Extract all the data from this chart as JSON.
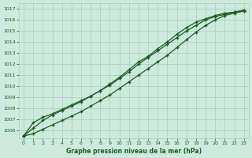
{
  "title": "Graphe pression niveau de la mer (hPa)",
  "bg_color": "#ceeade",
  "grid_color": "#aacebb",
  "line_color": "#1a5e20",
  "marker": "+",
  "xlim": [
    -0.5,
    23.5
  ],
  "ylim": [
    1005.3,
    1017.5
  ],
  "xticks": [
    0,
    1,
    2,
    3,
    4,
    5,
    6,
    7,
    8,
    9,
    10,
    11,
    12,
    13,
    14,
    15,
    16,
    17,
    18,
    19,
    20,
    21,
    22,
    23
  ],
  "yticks": [
    1006,
    1007,
    1008,
    1009,
    1010,
    1011,
    1012,
    1013,
    1014,
    1015,
    1016,
    1017
  ],
  "series": [
    [
      1005.5,
      1006.7,
      1007.2,
      1007.5,
      1007.9,
      1008.3,
      1008.7,
      1009.1,
      1009.6,
      1010.1,
      1010.7,
      1011.3,
      1012.0,
      1012.6,
      1013.2,
      1013.8,
      1014.4,
      1015.0,
      1015.5,
      1016.0,
      1016.3,
      1016.5,
      1016.7,
      1016.8
    ],
    [
      1005.5,
      1006.2,
      1006.9,
      1007.4,
      1007.8,
      1008.2,
      1008.6,
      1009.1,
      1009.6,
      1010.2,
      1010.8,
      1011.5,
      1012.2,
      1012.7,
      1013.4,
      1014.0,
      1014.7,
      1015.3,
      1015.8,
      1016.1,
      1016.4,
      1016.6,
      1016.7,
      1016.9
    ],
    [
      1005.5,
      1005.7,
      1006.1,
      1006.5,
      1006.9,
      1007.3,
      1007.7,
      1008.2,
      1008.7,
      1009.2,
      1009.8,
      1010.4,
      1011.0,
      1011.6,
      1012.2,
      1012.8,
      1013.5,
      1014.2,
      1014.9,
      1015.5,
      1016.0,
      1016.4,
      1016.6,
      1016.8
    ]
  ]
}
